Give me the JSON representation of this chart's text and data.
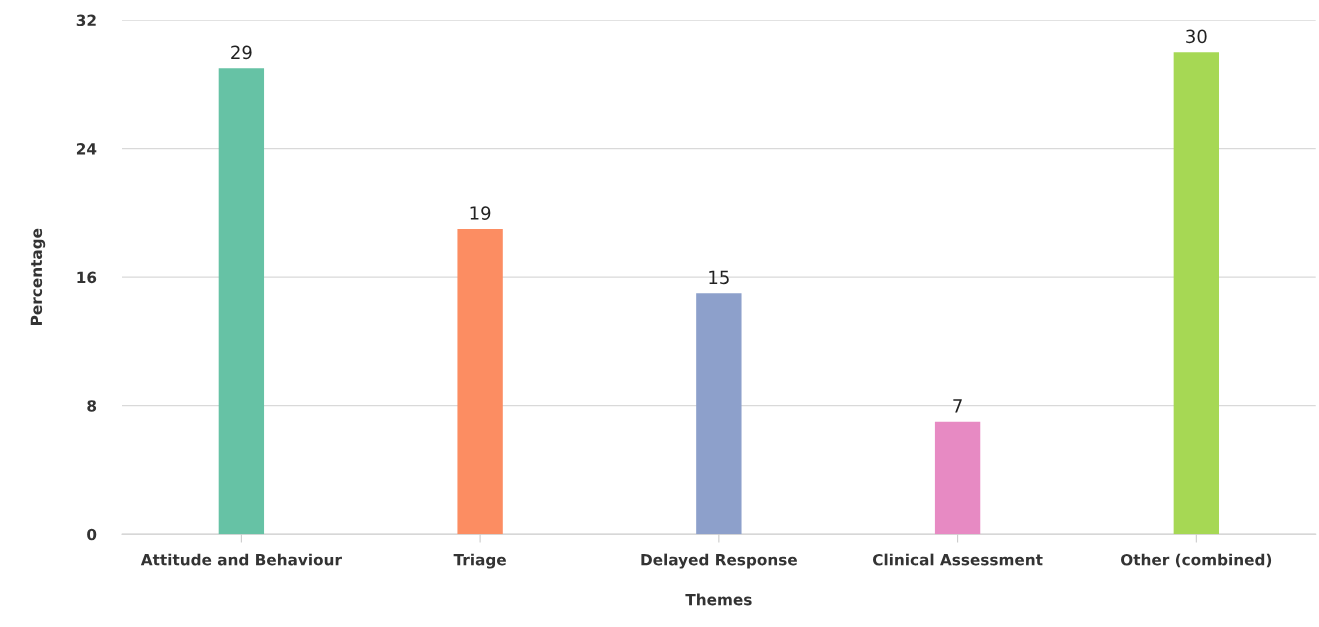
{
  "chart_data": {
    "type": "bar",
    "xlabel": "Themes",
    "ylabel": "Percentage",
    "categories": [
      "Attitude and Behaviour",
      "Triage",
      "Delayed Response",
      "Clinical Assessment",
      "Other (combined)"
    ],
    "values": [
      29,
      19,
      15,
      7,
      30
    ],
    "colors": [
      "#66c2a5",
      "#fc8d62",
      "#8da0cb",
      "#e78ac3",
      "#a6d854"
    ],
    "ylim": [
      0,
      32
    ],
    "yticks": [
      0,
      8,
      16,
      24,
      32
    ],
    "grid": "y",
    "data_labels": true
  }
}
